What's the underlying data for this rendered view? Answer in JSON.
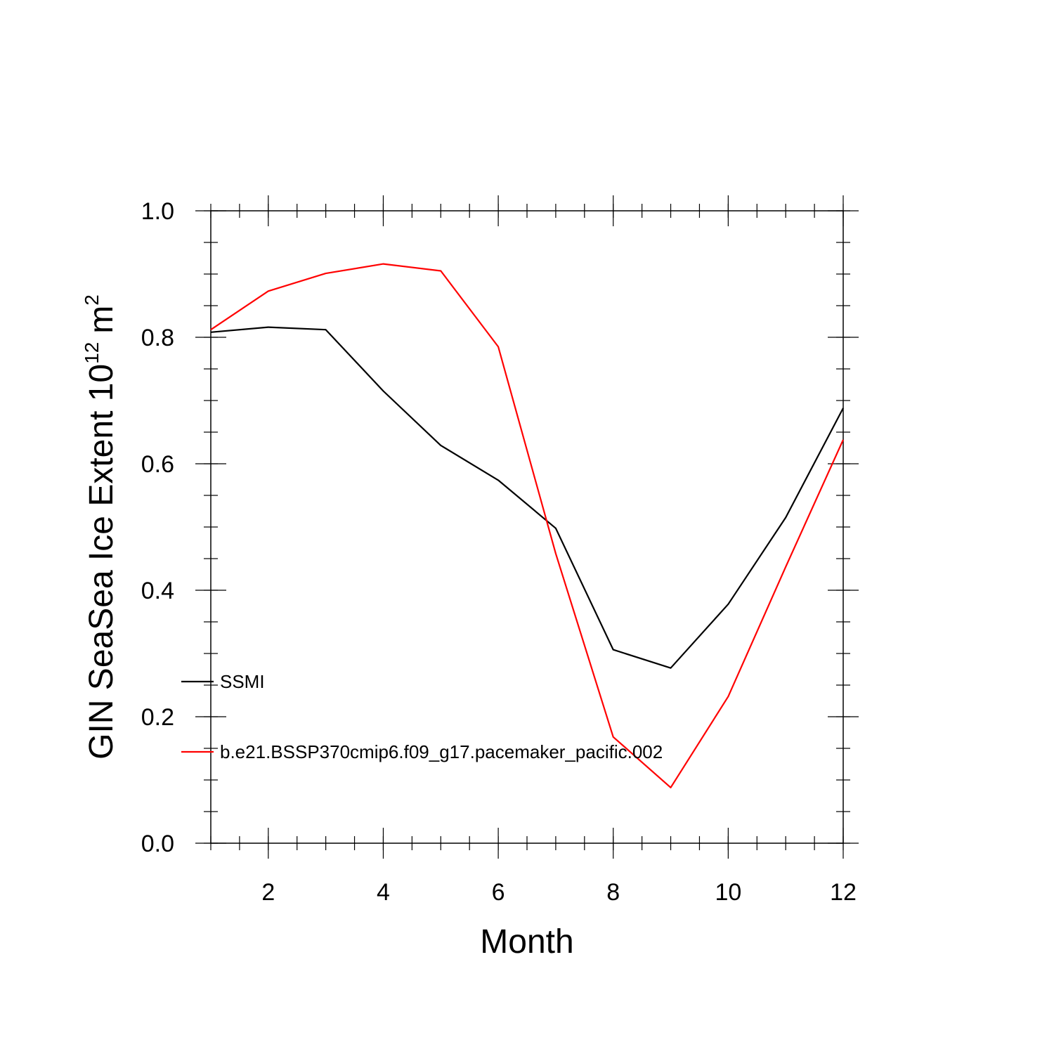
{
  "chart_data": {
    "type": "line",
    "xlabel": "Month",
    "ylabel_text": "GIN SeaSea Ice Extent 10",
    "ylabel_exponent": "12",
    "ylabel_unit": "m",
    "ylabel_unit_exponent": "2",
    "xlim": [
      1,
      12
    ],
    "ylim": [
      0,
      1
    ],
    "x_ticks": [
      2,
      4,
      6,
      8,
      10,
      12
    ],
    "x_tick_labels": [
      "2",
      "4",
      "6",
      "8",
      "10",
      "12"
    ],
    "y_ticks": [
      0,
      0.2,
      0.4,
      0.6,
      0.8,
      1
    ],
    "y_tick_labels": [
      "0.0",
      "0.2",
      "0.4",
      "0.6",
      "0.8",
      "1.0"
    ],
    "x": [
      1,
      2,
      3,
      4,
      5,
      6,
      7,
      8,
      9,
      10,
      11,
      12
    ],
    "series": [
      {
        "name": "SSMI",
        "color": "#000000",
        "values": [
          0.808,
          0.816,
          0.812,
          0.715,
          0.629,
          0.574,
          0.498,
          0.306,
          0.277,
          0.378,
          0.515,
          0.688
        ]
      },
      {
        "name": "b.e21.BSSP370cmip6.f09_g17.pacemaker_pacific.002",
        "color": "#ff0000",
        "values": [
          0.812,
          0.873,
          0.901,
          0.916,
          0.905,
          0.785,
          0.458,
          0.168,
          0.088,
          0.232,
          0.437,
          0.638
        ]
      }
    ],
    "legend_position": "bottom-left",
    "grid": false
  }
}
